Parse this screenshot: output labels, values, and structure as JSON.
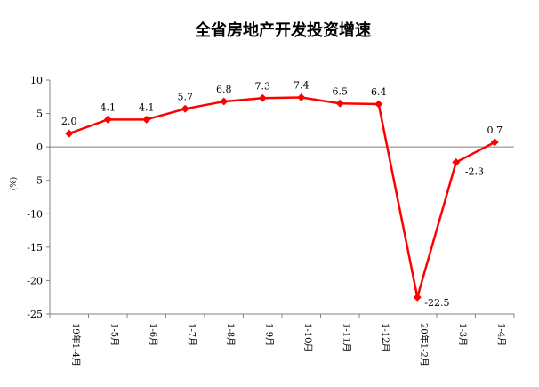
{
  "chart_data": {
    "type": "line",
    "title": "全省房地产开发投资增速",
    "ylabel": "(%)",
    "categories": [
      "19年1-4月",
      "1-5月",
      "1-6月",
      "1-7月",
      "1-8月",
      "1-9月",
      "1-10月",
      "1-11月",
      "1-12月",
      "20年1-2月",
      "1-3月",
      "1-4月"
    ],
    "values": [
      2.0,
      4.1,
      4.1,
      5.7,
      6.8,
      7.3,
      7.4,
      6.5,
      6.4,
      -22.5,
      -2.3,
      0.7
    ],
    "data_labels": [
      "2.0",
      "4.1",
      "4.1",
      "5.7",
      "6.8",
      "7.3",
      "7.4",
      "6.5",
      "6.4",
      "-22.5",
      "-2.3",
      "0.7"
    ],
    "ylim": [
      -25,
      10
    ],
    "yticks": [
      10,
      5,
      0,
      -5,
      -10,
      -15,
      -20,
      -25
    ],
    "grid": false,
    "colors": {
      "line": "#ff0000",
      "marker": "#ff0000",
      "axis": "#808080"
    }
  }
}
